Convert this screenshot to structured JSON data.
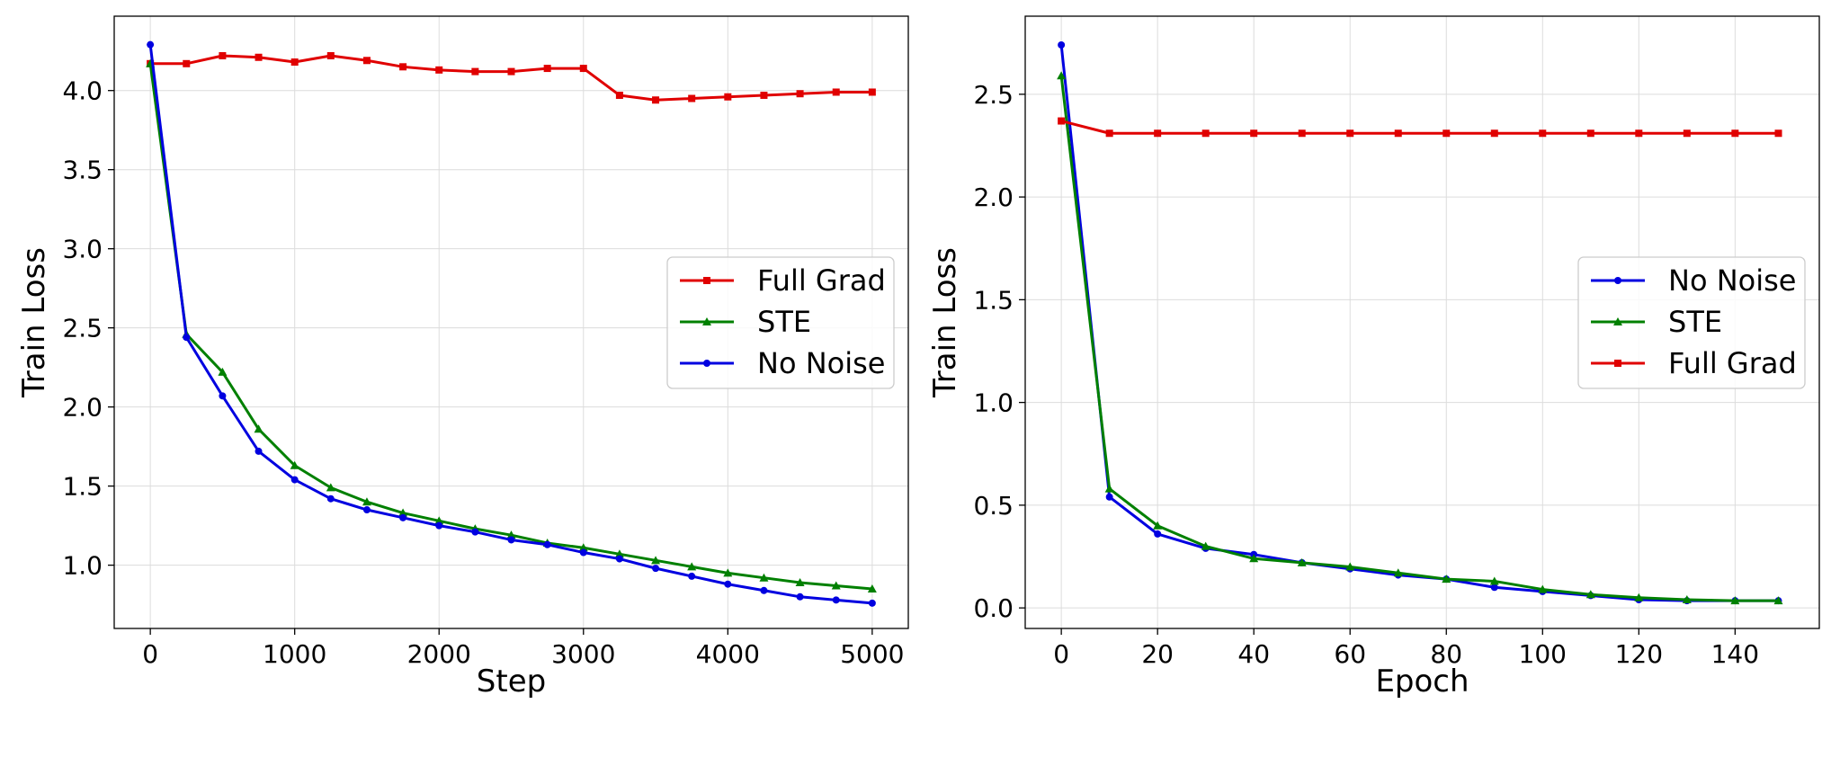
{
  "chart_data": [
    {
      "type": "line",
      "title": "",
      "xlabel": "Step",
      "ylabel": "Train Loss",
      "xlim": [
        -250,
        5250
      ],
      "ylim": [
        0.6,
        4.47
      ],
      "xticks": [
        0,
        1000,
        2000,
        3000,
        4000,
        5000
      ],
      "xtick_labels": [
        "0",
        "1000",
        "2000",
        "3000",
        "4000",
        "5000"
      ],
      "yticks": [
        1.0,
        1.5,
        2.0,
        2.5,
        3.0,
        3.5,
        4.0
      ],
      "ytick_labels": [
        "1.0",
        "1.5",
        "2.0",
        "2.5",
        "3.0",
        "3.5",
        "4.0"
      ],
      "grid": true,
      "legend_position": "center-right",
      "x": [
        0,
        250,
        500,
        750,
        1000,
        1250,
        1500,
        1750,
        2000,
        2250,
        2500,
        2750,
        3000,
        3250,
        3500,
        3750,
        4000,
        4250,
        4500,
        4750,
        5000
      ],
      "series": [
        {
          "name": "Full Grad",
          "color": "#e00000",
          "marker": "square",
          "values": [
            4.17,
            4.17,
            4.22,
            4.21,
            4.18,
            4.22,
            4.19,
            4.15,
            4.13,
            4.12,
            4.12,
            4.14,
            4.14,
            3.97,
            3.94,
            3.95,
            3.96,
            3.97,
            3.98,
            3.99,
            3.99
          ]
        },
        {
          "name": "STE",
          "color": "#008000",
          "marker": "triangle",
          "values": [
            4.17,
            2.46,
            2.22,
            1.86,
            1.63,
            1.49,
            1.4,
            1.33,
            1.28,
            1.23,
            1.19,
            1.14,
            1.11,
            1.07,
            1.03,
            0.99,
            0.95,
            0.92,
            0.89,
            0.87,
            0.85
          ]
        },
        {
          "name": "No Noise",
          "color": "#0000e0",
          "marker": "circle",
          "values": [
            4.29,
            2.44,
            2.07,
            1.72,
            1.54,
            1.42,
            1.35,
            1.3,
            1.25,
            1.21,
            1.16,
            1.13,
            1.08,
            1.04,
            0.98,
            0.93,
            0.88,
            0.84,
            0.8,
            0.78,
            0.76
          ]
        }
      ]
    },
    {
      "type": "line",
      "title": "",
      "xlabel": "Epoch",
      "ylabel": "Train Loss",
      "xlim": [
        -7.5,
        157.5
      ],
      "ylim": [
        -0.1,
        2.88
      ],
      "xticks": [
        0,
        20,
        40,
        60,
        80,
        100,
        120,
        140
      ],
      "xtick_labels": [
        "0",
        "20",
        "40",
        "60",
        "80",
        "100",
        "120",
        "140"
      ],
      "yticks": [
        0.0,
        0.5,
        1.0,
        1.5,
        2.0,
        2.5
      ],
      "ytick_labels": [
        "0.0",
        "0.5",
        "1.0",
        "1.5",
        "2.0",
        "2.5"
      ],
      "grid": true,
      "legend_position": "center-right",
      "x": [
        0,
        10,
        20,
        30,
        40,
        50,
        60,
        70,
        80,
        90,
        100,
        110,
        120,
        130,
        140,
        149
      ],
      "series": [
        {
          "name": "No Noise",
          "color": "#0000e0",
          "marker": "circle",
          "values": [
            2.74,
            0.54,
            0.36,
            0.29,
            0.26,
            0.22,
            0.19,
            0.16,
            0.14,
            0.1,
            0.08,
            0.06,
            0.04,
            0.035,
            0.035,
            0.035
          ]
        },
        {
          "name": "STE",
          "color": "#008000",
          "marker": "triangle",
          "values": [
            2.59,
            0.58,
            0.4,
            0.3,
            0.24,
            0.22,
            0.2,
            0.17,
            0.14,
            0.13,
            0.09,
            0.065,
            0.05,
            0.04,
            0.035,
            0.035
          ]
        },
        {
          "name": "Full Grad",
          "color": "#e00000",
          "marker": "square",
          "values": [
            2.37,
            2.31,
            2.31,
            2.31,
            2.31,
            2.31,
            2.31,
            2.31,
            2.31,
            2.31,
            2.31,
            2.31,
            2.31,
            2.31,
            2.31,
            2.31
          ]
        }
      ]
    }
  ]
}
